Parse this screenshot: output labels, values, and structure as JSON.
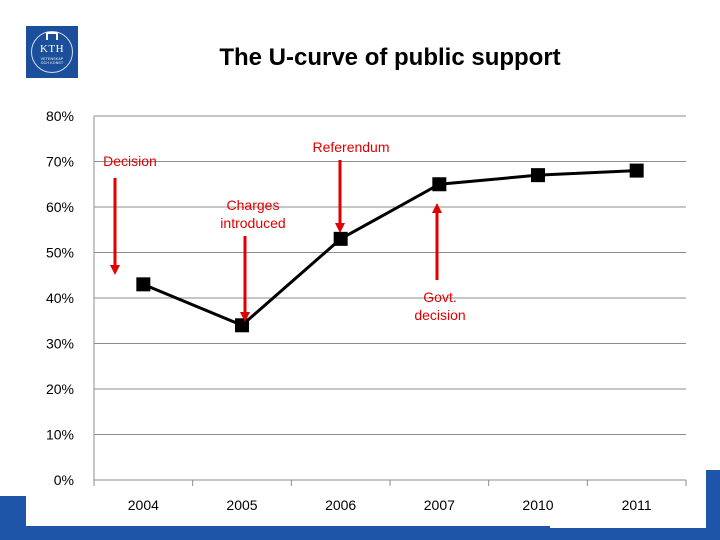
{
  "logo": {
    "text": "KTH",
    "sub_line1": "VETENSKAP",
    "sub_line2": "OCH KONST"
  },
  "title": "The U-curve of public support",
  "chart_data": {
    "type": "line",
    "categories": [
      "2004",
      "2005",
      "2006",
      "2007",
      "2010",
      "2011"
    ],
    "values": [
      0.43,
      0.34,
      0.53,
      0.65,
      0.67,
      0.68
    ],
    "ylim": [
      0,
      0.8
    ],
    "ytick_values": [
      0,
      0.1,
      0.2,
      0.3,
      0.4,
      0.5,
      0.6,
      0.7,
      0.8
    ],
    "ytick_labels": [
      "0%",
      "10%",
      "20%",
      "30%",
      "40%",
      "50%",
      "60%",
      "70%",
      "80%"
    ],
    "grid": true,
    "line_color": "#000000",
    "annotation_color": "#e00000",
    "annotations": [
      {
        "lines": [
          "Decision"
        ],
        "category_index": 0,
        "direction": "down"
      },
      {
        "lines": [
          "Charges",
          "introduced"
        ],
        "category_index": 1,
        "direction": "down"
      },
      {
        "lines": [
          "Referendum"
        ],
        "category_index": 2,
        "direction": "down"
      },
      {
        "lines": [
          "Govt.",
          "decision"
        ],
        "category_index": 3,
        "direction": "up"
      }
    ]
  }
}
